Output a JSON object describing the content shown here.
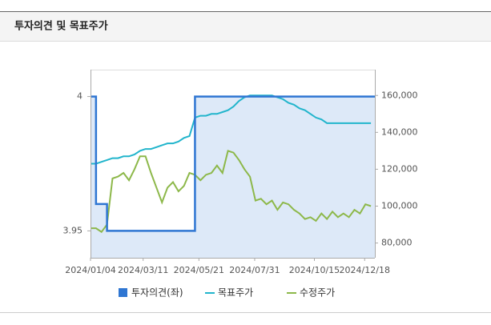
{
  "chart_data": {
    "type": "line",
    "title": "투자의견 및 목표주가",
    "x": [
      "2024/01/04",
      "2024/01/11",
      "2024/01/18",
      "2024/01/25",
      "2024/02/01",
      "2024/02/08",
      "2024/02/15",
      "2024/02/22",
      "2024/02/29",
      "2024/03/07",
      "2024/03/14",
      "2024/03/21",
      "2024/03/28",
      "2024/04/04",
      "2024/04/11",
      "2024/04/18",
      "2024/04/25",
      "2024/05/02",
      "2024/05/09",
      "2024/05/16",
      "2024/05/23",
      "2024/05/30",
      "2024/06/06",
      "2024/06/13",
      "2024/06/20",
      "2024/06/27",
      "2024/07/04",
      "2024/07/11",
      "2024/07/18",
      "2024/07/25",
      "2024/08/01",
      "2024/08/08",
      "2024/08/15",
      "2024/08/22",
      "2024/08/29",
      "2024/09/05",
      "2024/09/12",
      "2024/09/19",
      "2024/09/26",
      "2024/10/03",
      "2024/10/10",
      "2024/10/17",
      "2024/10/24",
      "2024/10/31",
      "2024/11/07",
      "2024/11/14",
      "2024/11/21",
      "2024/11/28",
      "2024/12/05",
      "2024/12/12",
      "2024/12/19",
      "2024/12/26"
    ],
    "xlim": [
      "2024/01/04",
      "2024/12/31"
    ],
    "xticks": [
      "2024/01/04",
      "2024/03/11",
      "2024/05/21",
      "2024/07/31",
      "2024/10/15",
      "2024/12/18"
    ],
    "ylim": [
      3.94,
      4.01
    ],
    "yticks": [
      4,
      3.95
    ],
    "y2lim": [
      72000,
      174000
    ],
    "y2ticks": [
      {
        "value": 80000,
        "label": "80,000"
      },
      {
        "value": 100000,
        "label": "100,000"
      },
      {
        "value": 120000,
        "label": "120,000"
      },
      {
        "value": 140000,
        "label": "140,000"
      },
      {
        "value": 160000,
        "label": "160,000"
      }
    ],
    "series": [
      {
        "name": "투자의견(좌)",
        "color": "#2f76d2",
        "area_color": "#dde9f8",
        "step": true,
        "values": [
          4,
          3.96,
          3.96,
          3.95,
          3.95,
          3.95,
          3.95,
          3.95,
          3.95,
          3.95,
          3.95,
          3.95,
          3.95,
          3.95,
          3.95,
          3.95,
          3.95,
          3.95,
          3.95,
          4,
          4,
          4,
          4,
          4,
          4,
          4,
          4,
          4,
          4,
          4,
          4,
          4,
          4,
          4,
          4,
          4,
          4,
          4,
          4,
          4,
          4,
          4,
          4,
          4,
          4,
          4,
          4,
          4,
          4,
          4,
          4,
          4
        ]
      },
      {
        "name": "목표주가",
        "color": "#22b5cc",
        "axis": "y2",
        "values": [
          123000,
          123000,
          124000,
          125000,
          126000,
          126000,
          127000,
          127000,
          128000,
          130000,
          131000,
          131000,
          132000,
          133000,
          134000,
          134000,
          135000,
          137000,
          138000,
          148000,
          149000,
          149000,
          150000,
          150000,
          151000,
          152000,
          154000,
          157000,
          159000,
          160000,
          160000,
          160000,
          160000,
          160000,
          159000,
          158000,
          156000,
          155000,
          153000,
          152000,
          150000,
          148000,
          147000,
          145000,
          145000,
          145000,
          145000,
          145000,
          145000,
          145000,
          145000,
          145000
        ]
      },
      {
        "name": "수정주가",
        "color": "#8db84a",
        "axis": "y2",
        "values": [
          88000,
          88000,
          86000,
          90000,
          115000,
          116000,
          118000,
          114000,
          120000,
          127000,
          127000,
          118000,
          110000,
          102000,
          110000,
          113000,
          108000,
          111000,
          118000,
          117000,
          114000,
          117000,
          118000,
          122000,
          118000,
          130000,
          129000,
          125000,
          120000,
          116000,
          103000,
          104000,
          101000,
          103000,
          98000,
          102000,
          101000,
          98000,
          96000,
          93000,
          94000,
          92000,
          96000,
          93000,
          97000,
          94000,
          96000,
          94000,
          98000,
          96000,
          101000,
          100000
        ]
      }
    ]
  }
}
